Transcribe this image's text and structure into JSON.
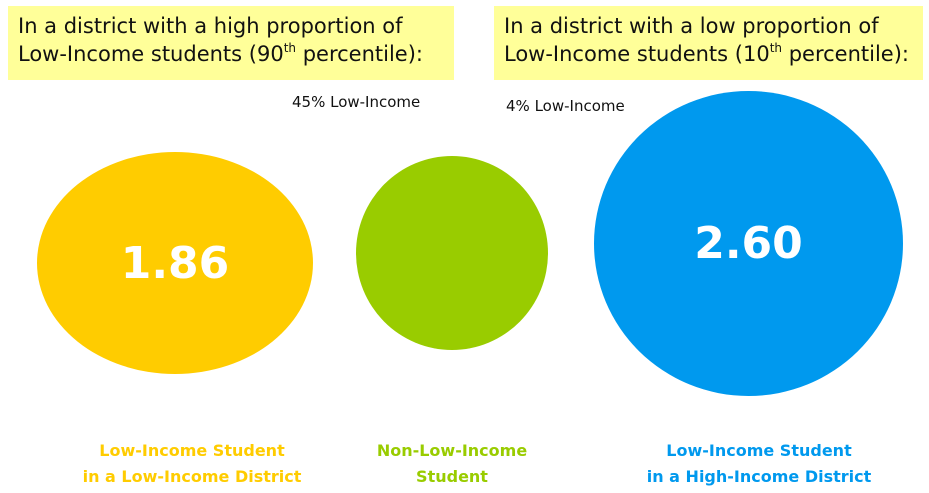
{
  "callouts": {
    "high": {
      "line1": "In a district with a high proportion of",
      "line2_before": "Low-Income students (90",
      "line2_sup": "th",
      "line2_after": " percentile):"
    },
    "low": {
      "line1": "In a district with a low proportion of",
      "line2_before": "Low-Income students (10",
      "line2_sup": "th",
      "line2_after": " percentile):"
    }
  },
  "percent_labels": {
    "high_district": "45% Low-Income",
    "low_district": "4% Low-Income"
  },
  "bubbles": [
    {
      "value": "1.86",
      "color": "#ffcc00",
      "caption_line1": "Low-Income Student",
      "caption_line2": "in a Low-Income District"
    },
    {
      "value": "",
      "color": "#99cc00",
      "caption_line1": "Non-Low-Income",
      "caption_line2": "Student"
    },
    {
      "value": "2.60",
      "color": "#0099ee",
      "caption_line1": "Low-Income Student",
      "caption_line2": "in a High-Income District"
    }
  ],
  "colors": {
    "callout_background": "#ffff99",
    "bubble_text": "#ffffff",
    "caption_yellow": "#ffcc00",
    "caption_green": "#99cc00",
    "caption_blue": "#0099ee"
  }
}
